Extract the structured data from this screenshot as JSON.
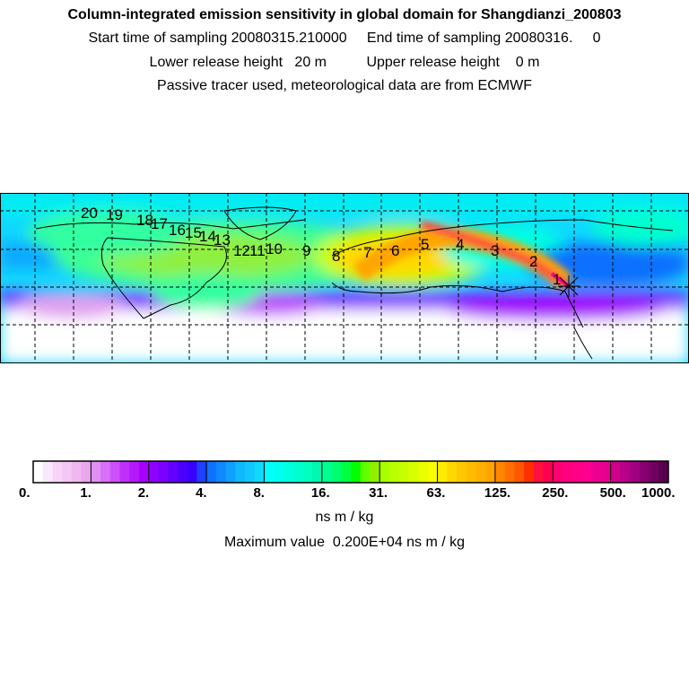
{
  "header": {
    "title": "Column-integrated emission sensitivity in global domain for Shangdianzi_200803",
    "line1": "Start time of sampling 20080315.210000     End time of sampling 20080316.     0",
    "line2": "Lower release height   20 m          Upper release height    0 m",
    "line3": "Passive tracer used, meteorological data are from ECMWF"
  },
  "chart_data": {
    "type": "heatmap",
    "title": "Column-integrated emission sensitivity in global domain for Shangdianzi_200803",
    "units": "ns m / kg",
    "max_value_text": "Maximum value  0.200E+04 ns m / kg",
    "colorbar_ticks": [
      "0.",
      "1.",
      "2.",
      "4.",
      "8.",
      "16.",
      "31.",
      "63.",
      "125.",
      "250.",
      "500.",
      "1000."
    ],
    "colorbar_segments": [
      [
        "#ffffff",
        "#fbe8fb",
        "#f7d4f7",
        "#f3c6f3",
        "#efb8ef",
        "#e9a8ec"
      ],
      [
        "#e090f5",
        "#d870f8",
        "#cc50fa",
        "#c030fb",
        "#b418fc",
        "#a800ff"
      ],
      [
        "#9000ff",
        "#7a00ff",
        "#6400ff",
        "#4e00ff",
        "#3800ff",
        "#2040ff"
      ],
      [
        "#1070ff",
        "#1088ff",
        "#10a0ff",
        "#10b8ff",
        "#10c8ff",
        "#10d8ff"
      ],
      [
        "#00ffff",
        "#00fff0",
        "#00ffe0",
        "#00ffd0",
        "#00ffc0",
        "#00f8b0"
      ],
      [
        "#00ff90",
        "#00ff70",
        "#00ff40",
        "#00ff00",
        "#60ff00",
        "#90f000"
      ],
      [
        "#a8ff00",
        "#b8ff00",
        "#c8ff00",
        "#d8ff00",
        "#e8ff00",
        "#f8ff00"
      ],
      [
        "#ffea00",
        "#ffd800",
        "#ffc800",
        "#ffbc00",
        "#ffb000",
        "#ffa400"
      ],
      [
        "#ff8800",
        "#ff7000",
        "#ff5800",
        "#ff3000",
        "#ff1040",
        "#ff0050"
      ],
      [
        "#ff0070",
        "#ff0080",
        "#ff0088",
        "#ff0090",
        "#f00090",
        "#e8008c"
      ],
      [
        "#d0008c",
        "#b80088",
        "#a00080",
        "#880070",
        "#700060",
        "#580050"
      ]
    ],
    "trajectory_labels": [
      "1",
      "2",
      "3",
      "4",
      "5",
      "6",
      "7",
      "8",
      "9",
      "10",
      "11",
      "12",
      "13",
      "14",
      "15",
      "16",
      "17",
      "18",
      "19",
      "20"
    ],
    "colors": {
      "background": "#00e8f8",
      "plume": "#ff2060",
      "grid": "#000000"
    }
  }
}
